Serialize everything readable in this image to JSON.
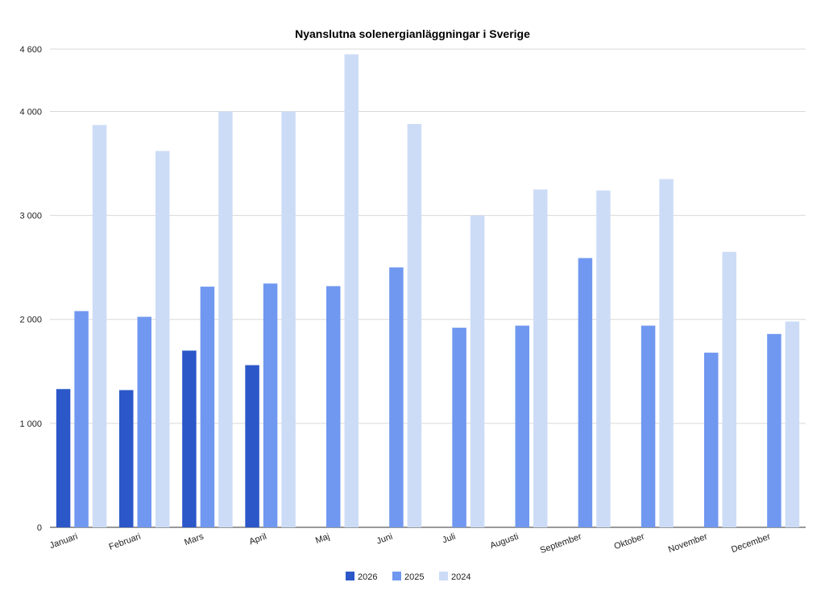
{
  "chart_data": {
    "type": "bar",
    "title": "Nyanslutna solenergianläggningar i Sverige",
    "xlabel": "",
    "ylabel": "",
    "ylim": [
      0,
      4600
    ],
    "yticks": [
      0,
      1000,
      2000,
      3000,
      4000,
      4600
    ],
    "ytick_labels": [
      "0",
      "1 000",
      "2 000",
      "3 000",
      "4 000",
      "4 600"
    ],
    "categories": [
      "Januari",
      "Februari",
      "Mars",
      "April",
      "Maj",
      "Juni",
      "Juli",
      "Augusti",
      "September",
      "Oktober",
      "November",
      "December"
    ],
    "series": [
      {
        "name": "2026",
        "color": "#2b57c9",
        "values": [
          1330,
          1320,
          1700,
          1560,
          null,
          null,
          null,
          null,
          null,
          null,
          null,
          null
        ]
      },
      {
        "name": "2025",
        "color": "#7098f0",
        "values": [
          2080,
          2025,
          2315,
          2345,
          2320,
          2500,
          1920,
          1940,
          2590,
          1940,
          1680,
          1860
        ]
      },
      {
        "name": "2024",
        "color": "#cddcf6",
        "values": [
          3870,
          3620,
          4000,
          4000,
          4550,
          3880,
          3000,
          3250,
          3240,
          3350,
          2650,
          1980
        ]
      }
    ],
    "grid": true,
    "legend_position": "bottom"
  }
}
